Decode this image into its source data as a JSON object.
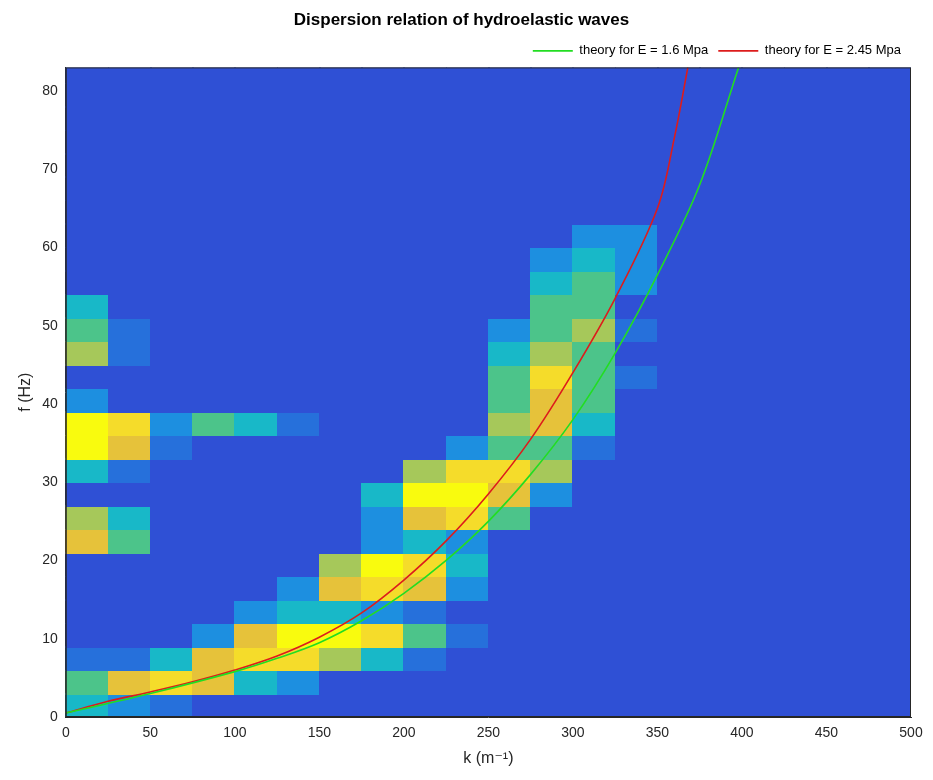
{
  "chart_data": {
    "type": "heatmap",
    "title": "Dispersion relation of hydroelastic waves",
    "x_label": "k (m⁻¹)",
    "y_label": "f (Hz)",
    "xlim": [
      0,
      500
    ],
    "ylim": [
      0,
      83
    ],
    "xticks": [
      0,
      50,
      100,
      150,
      200,
      250,
      300,
      350,
      400,
      450,
      500
    ],
    "yticks": [
      0,
      10,
      20,
      30,
      40,
      50,
      60,
      70,
      80
    ],
    "grid": false,
    "legend": "top",
    "heatmap": {
      "x_bins": [
        0,
        25,
        50,
        75,
        100,
        125,
        150,
        175,
        200,
        225,
        250,
        275,
        300,
        325,
        350,
        375,
        400,
        425,
        450,
        475,
        500
      ],
      "y_bins": [
        0,
        3,
        6,
        9,
        12,
        15,
        18,
        21,
        24,
        27,
        30,
        33,
        36,
        39,
        42,
        45,
        48,
        51,
        54,
        57,
        60,
        63,
        66,
        69,
        72,
        75,
        78,
        81,
        84
      ],
      "clim": [
        0,
        10
      ],
      "cells": [
        [
          5,
          4,
          3,
          2,
          2,
          2,
          2,
          2,
          2,
          2,
          2,
          2,
          2,
          2,
          2,
          2,
          2,
          2,
          2,
          2
        ],
        [
          6,
          8,
          9,
          8,
          5,
          4,
          2,
          2,
          2,
          2,
          2,
          2,
          2,
          2,
          2,
          2,
          2,
          2,
          2,
          2
        ],
        [
          3,
          3,
          5,
          8,
          9,
          9,
          7,
          5,
          3,
          2,
          2,
          2,
          2,
          2,
          2,
          2,
          2,
          2,
          2,
          2
        ],
        [
          2,
          2,
          2,
          4,
          8,
          10,
          10,
          9,
          6,
          3,
          2,
          2,
          2,
          2,
          2,
          2,
          2,
          2,
          2,
          2
        ],
        [
          2,
          2,
          2,
          2,
          4,
          5,
          5,
          4,
          3,
          2,
          2,
          2,
          2,
          2,
          2,
          2,
          2,
          2,
          2,
          2
        ],
        [
          2,
          2,
          2,
          2,
          2,
          4,
          8,
          9,
          8,
          4,
          2,
          2,
          2,
          2,
          2,
          2,
          2,
          2,
          2,
          2
        ],
        [
          2,
          2,
          2,
          2,
          2,
          2,
          7,
          10,
          9,
          5,
          2,
          2,
          2,
          2,
          2,
          2,
          2,
          2,
          2,
          2
        ],
        [
          8,
          6,
          2,
          2,
          2,
          2,
          2,
          4,
          5,
          4,
          2,
          2,
          2,
          2,
          2,
          2,
          2,
          2,
          2,
          2
        ],
        [
          7,
          5,
          2,
          2,
          2,
          2,
          2,
          4,
          8,
          9,
          6,
          2,
          2,
          2,
          2,
          2,
          2,
          2,
          2,
          2
        ],
        [
          2,
          2,
          2,
          2,
          2,
          2,
          2,
          5,
          10,
          10,
          8,
          4,
          2,
          2,
          2,
          2,
          2,
          2,
          2,
          2
        ],
        [
          5,
          3,
          2,
          2,
          2,
          2,
          2,
          2,
          7,
          9,
          9,
          7,
          2,
          2,
          2,
          2,
          2,
          2,
          2,
          2
        ],
        [
          10,
          8,
          3,
          2,
          2,
          2,
          2,
          2,
          2,
          4,
          6,
          6,
          3,
          2,
          2,
          2,
          2,
          2,
          2,
          2
        ],
        [
          10,
          9,
          4,
          6,
          5,
          3,
          2,
          2,
          2,
          2,
          7,
          8,
          5,
          2,
          2,
          2,
          2,
          2,
          2,
          2
        ],
        [
          4,
          2,
          2,
          2,
          2,
          2,
          2,
          2,
          2,
          2,
          6,
          8,
          6,
          2,
          2,
          2,
          2,
          2,
          2,
          2
        ],
        [
          2,
          2,
          2,
          2,
          2,
          2,
          2,
          2,
          2,
          2,
          6,
          9,
          6,
          3,
          2,
          2,
          2,
          2,
          2,
          2
        ],
        [
          7,
          3,
          2,
          2,
          2,
          2,
          2,
          2,
          2,
          2,
          5,
          7,
          6,
          2,
          2,
          2,
          2,
          2,
          2,
          2
        ],
        [
          6,
          3,
          2,
          2,
          2,
          2,
          2,
          2,
          2,
          2,
          4,
          6,
          7,
          3,
          2,
          2,
          2,
          2,
          2,
          2
        ],
        [
          5,
          2,
          2,
          2,
          2,
          2,
          2,
          2,
          2,
          2,
          2,
          6,
          6,
          2,
          2,
          2,
          2,
          2,
          2,
          2
        ],
        [
          2,
          2,
          2,
          2,
          2,
          2,
          2,
          2,
          2,
          2,
          2,
          5,
          6,
          4,
          2,
          2,
          2,
          2,
          2,
          2
        ],
        [
          2,
          2,
          2,
          2,
          2,
          2,
          2,
          2,
          2,
          2,
          2,
          4,
          5,
          4,
          2,
          2,
          2,
          2,
          2,
          2
        ],
        [
          2,
          2,
          2,
          2,
          2,
          2,
          2,
          2,
          2,
          2,
          2,
          2,
          4,
          4,
          2,
          2,
          2,
          2,
          2,
          2
        ],
        [
          2,
          2,
          2,
          2,
          2,
          2,
          2,
          2,
          2,
          2,
          2,
          2,
          2,
          2,
          2,
          2,
          2,
          2,
          2,
          2
        ],
        [
          2,
          2,
          2,
          2,
          2,
          2,
          2,
          2,
          2,
          2,
          2,
          2,
          2,
          2,
          2,
          2,
          2,
          2,
          2,
          2
        ],
        [
          2,
          2,
          2,
          2,
          2,
          2,
          2,
          2,
          2,
          2,
          2,
          2,
          2,
          2,
          2,
          2,
          2,
          2,
          2,
          2
        ],
        [
          2,
          2,
          2,
          2,
          2,
          2,
          2,
          2,
          2,
          2,
          2,
          2,
          2,
          2,
          2,
          2,
          2,
          2,
          2,
          2
        ],
        [
          2,
          2,
          2,
          2,
          2,
          2,
          2,
          2,
          2,
          2,
          2,
          2,
          2,
          2,
          2,
          2,
          2,
          2,
          2,
          2
        ],
        [
          2,
          2,
          2,
          2,
          2,
          2,
          2,
          2,
          2,
          2,
          2,
          2,
          2,
          2,
          2,
          2,
          2,
          2,
          2,
          2
        ],
        [
          2,
          2,
          2,
          2,
          2,
          2,
          2,
          2,
          2,
          2,
          2,
          2,
          2,
          2,
          2,
          2,
          2,
          2,
          2,
          2
        ]
      ]
    },
    "series": [
      {
        "name": "theory for E = 1.6 Mpa",
        "type": "line",
        "color": "#22dd22",
        "line_style": "solid",
        "x": [
          0,
          50,
          100,
          125,
          150,
          175,
          200,
          225,
          250,
          275,
          300,
          325,
          350,
          375,
          398
        ],
        "values": [
          0.5,
          3,
          5.8,
          7.5,
          9.5,
          12.3,
          15.8,
          20,
          25,
          31,
          38,
          46.5,
          56.5,
          68,
          83
        ]
      },
      {
        "name": "theory for E = 2.45 Mpa",
        "type": "line",
        "color": "#dd1c1c",
        "line_style": "solid",
        "x": [
          0,
          25,
          50,
          75,
          100,
          125,
          150,
          175,
          200,
          225,
          250,
          275,
          300,
          325,
          350,
          360,
          368
        ],
        "values": [
          0.5,
          2,
          3.2,
          4.5,
          6,
          7.8,
          10.2,
          13.3,
          17.5,
          22.5,
          28.5,
          35.5,
          44,
          53.5,
          65,
          74,
          83
        ]
      }
    ]
  }
}
